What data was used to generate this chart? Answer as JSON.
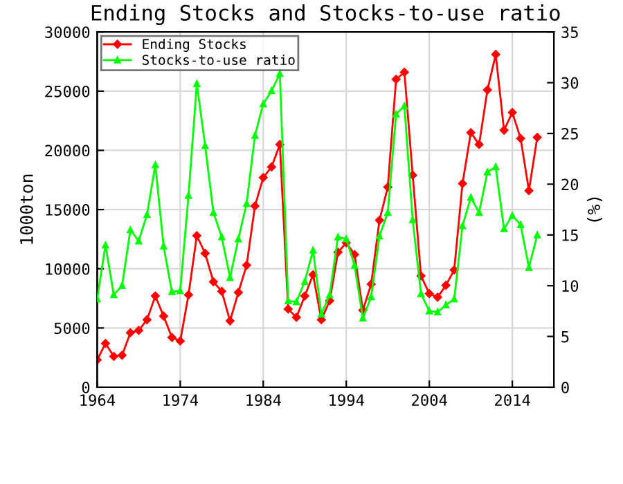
{
  "chart_data": {
    "type": "line",
    "title": "Ending Stocks and Stocks-to-use ratio",
    "ylabel": "1000ton",
    "y2label": "(%)",
    "x": [
      1964,
      1965,
      1966,
      1967,
      1968,
      1969,
      1970,
      1971,
      1972,
      1973,
      1974,
      1975,
      1976,
      1977,
      1978,
      1979,
      1980,
      1981,
      1982,
      1983,
      1984,
      1985,
      1986,
      1987,
      1988,
      1989,
      1990,
      1991,
      1992,
      1993,
      1994,
      1995,
      1996,
      1997,
      1998,
      1999,
      2000,
      2001,
      2002,
      2003,
      2004,
      2005,
      2006,
      2007,
      2008,
      2009,
      2010,
      2011,
      2012,
      2013,
      2014,
      2015,
      2016,
      2017
    ],
    "series": [
      {
        "name": "Ending Stocks",
        "color": "#ff0000",
        "marker": "diamond",
        "values": [
          2300,
          3700,
          2600,
          2700,
          4600,
          4800,
          5700,
          7700,
          6000,
          4200,
          3900,
          7800,
          12800,
          11300,
          8900,
          8100,
          5600,
          8000,
          10300,
          15300,
          17700,
          18600,
          20500,
          6600,
          5900,
          7700,
          9500,
          5700,
          7300,
          11400,
          12200,
          11200,
          6500,
          8700,
          14100,
          16900,
          26000,
          26600,
          17900,
          9400,
          7900,
          7600,
          8600,
          9900,
          17200,
          21500,
          20500,
          25100,
          28100,
          21700,
          23200,
          21000,
          16600,
          21100
        ]
      },
      {
        "name": "Stocks-to-use ratio",
        "color": "#00ff00",
        "marker": "triangle",
        "axis": "y2",
        "values": [
          8.7,
          14.0,
          9.1,
          10.0,
          15.5,
          14.4,
          17.0,
          21.9,
          13.9,
          9.4,
          9.5,
          18.9,
          29.9,
          23.8,
          17.2,
          14.8,
          10.8,
          14.6,
          18.1,
          24.8,
          27.9,
          29.2,
          30.9,
          8.5,
          8.4,
          10.4,
          13.5,
          7.2,
          9.1,
          14.8,
          14.6,
          12.0,
          6.8,
          8.9,
          14.9,
          17.2,
          26.9,
          27.7,
          16.5,
          9.2,
          7.5,
          7.4,
          8.1,
          8.7,
          15.9,
          18.7,
          17.2,
          21.2,
          21.7,
          15.6,
          16.9,
          16.0,
          11.8,
          15.0
        ]
      }
    ],
    "xlim": [
      1964,
      2019
    ],
    "xticks": [
      1964,
      1974,
      1984,
      1994,
      2004,
      2014
    ],
    "ylim": [
      0,
      30000
    ],
    "yticks": [
      0,
      5000,
      10000,
      15000,
      20000,
      25000,
      30000
    ],
    "y2lim": [
      0,
      35
    ],
    "y2ticks": [
      0,
      5,
      10,
      15,
      20,
      25,
      30,
      35
    ],
    "grid": true,
    "legend": "top left",
    "line_style": "solid"
  }
}
